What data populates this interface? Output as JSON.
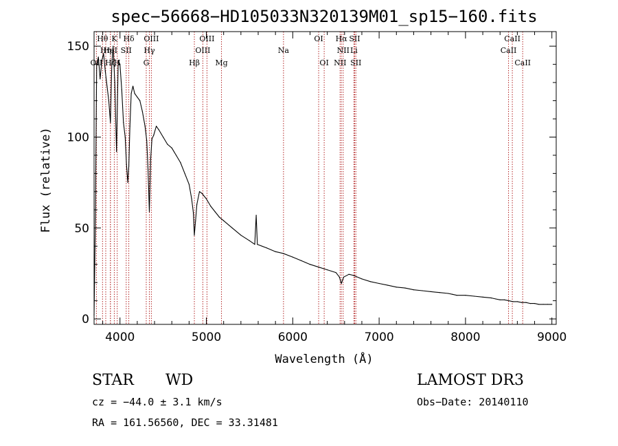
{
  "chart_data": {
    "type": "line",
    "title": "spec−56668−HD105033N320139M01_sp15−160.fits",
    "xlabel": "Wavelength (Å)",
    "ylabel": "Flux (relative)",
    "xlim": [
      3700,
      9050
    ],
    "ylim": [
      -3,
      158
    ],
    "x_ticks": [
      4000,
      5000,
      6000,
      7000,
      8000,
      9000
    ],
    "x_tick_labels": [
      "4000",
      "5000",
      "6000",
      "7000",
      "8000",
      "9000"
    ],
    "y_ticks": [
      0,
      50,
      100,
      150
    ],
    "y_tick_labels": [
      "0",
      "50",
      "100",
      "150"
    ],
    "grid": false,
    "legend": "none",
    "series": [
      {
        "name": "flux",
        "x": [
          3700,
          3715,
          3730,
          3750,
          3770,
          3790,
          3810,
          3830,
          3850,
          3870,
          3889,
          3905,
          3920,
          3940,
          3960,
          3970,
          3980,
          4000,
          4020,
          4040,
          4060,
          4075,
          4090,
          4102,
          4115,
          4130,
          4150,
          4170,
          4200,
          4230,
          4260,
          4290,
          4310,
          4325,
          4340,
          4355,
          4370,
          4390,
          4420,
          4450,
          4500,
          4550,
          4600,
          4650,
          4700,
          4750,
          4800,
          4830,
          4850,
          4861,
          4875,
          4890,
          4920,
          4950,
          5000,
          5050,
          5100,
          5150,
          5200,
          5300,
          5400,
          5500,
          5560,
          5577,
          5590,
          5700,
          5800,
          5890,
          6000,
          6100,
          6200,
          6300,
          6400,
          6500,
          6540,
          6563,
          6590,
          6650,
          6700,
          6800,
          6900,
          7000,
          7100,
          7200,
          7300,
          7400,
          7500,
          7600,
          7700,
          7800,
          7850,
          7900,
          8000,
          8100,
          8200,
          8300,
          8350,
          8400,
          8450,
          8500,
          8550,
          8600,
          8650,
          8700,
          8750,
          8800,
          8850,
          8900,
          8950,
          9000
        ],
        "y": [
          2,
          55,
          140,
          144,
          132,
          142,
          146,
          136,
          128,
          120,
          108,
          140,
          150,
          130,
          92,
          118,
          142,
          140,
          126,
          108,
          100,
          85,
          75,
          84,
          106,
          124,
          128,
          124,
          122,
          120,
          114,
          106,
          98,
          82,
          59,
          88,
          99,
          101,
          106,
          104,
          100,
          96,
          94,
          90,
          86,
          80,
          74,
          66,
          58,
          46,
          54,
          63,
          70,
          69,
          66,
          62,
          59,
          56,
          54,
          50,
          46,
          43,
          41,
          57,
          41,
          39,
          37,
          36,
          34,
          32,
          30,
          28.5,
          27,
          25.5,
          23,
          19.5,
          23,
          24.5,
          24,
          22,
          20.5,
          19.5,
          18.5,
          17.5,
          17,
          16,
          15.5,
          15,
          14.5,
          14,
          13.5,
          13,
          13,
          12.5,
          12,
          11.5,
          11,
          10.5,
          10.5,
          10,
          9.5,
          9.5,
          9,
          9,
          8.5,
          8.5,
          8,
          8,
          8,
          8
        ]
      }
    ],
    "lines_upper": [
      {
        "label": "Hθ",
        "x": 3798
      },
      {
        "label": "K",
        "x": 3934
      },
      {
        "label": "Hδ",
        "x": 4102
      },
      {
        "label": "OIII",
        "x": 4363
      },
      {
        "label": "OIII",
        "x": 5007
      },
      {
        "label": "OI",
        "x": 6300
      },
      {
        "label": "Hα",
        "x": 6563
      },
      {
        "label": "SII",
        "x": 6717
      },
      {
        "label": "CaII",
        "x": 8542
      }
    ],
    "lines_mid": [
      {
        "label": "Hη",
        "x": 3835
      },
      {
        "label": "HeI",
        "x": 3889
      },
      {
        "label": "SII",
        "x": 4072
      },
      {
        "label": "Hγ",
        "x": 4340
      },
      {
        "label": "OIII",
        "x": 4959
      },
      {
        "label": "Na",
        "x": 5893
      },
      {
        "label": "NII",
        "x": 6584
      },
      {
        "label": "Li",
        "x": 6708
      },
      {
        "label": "CaII",
        "x": 8498
      }
    ],
    "lines_lower": [
      {
        "label": "OII",
        "x": 3727
      },
      {
        "label": "Hζ",
        "x": 3889
      },
      {
        "label": "H",
        "x": 3968
      },
      {
        "label": "G",
        "x": 4304
      },
      {
        "label": "Hβ",
        "x": 4861
      },
      {
        "label": "Mg",
        "x": 5175
      },
      {
        "label": "OI",
        "x": 6364
      },
      {
        "label": "NII",
        "x": 6548
      },
      {
        "label": "SII",
        "x": 6731
      },
      {
        "label": "CaII",
        "x": 8662
      }
    ]
  },
  "footer": {
    "class_label": "STAR",
    "subclass_label": "WD",
    "survey": "LAMOST DR3",
    "redshift": "cz = −44.0 ± 3.1 km/s",
    "obs_date": "Obs−Date: 20140110",
    "coords": "RA = 161.56560, DEC =  33.31481"
  }
}
